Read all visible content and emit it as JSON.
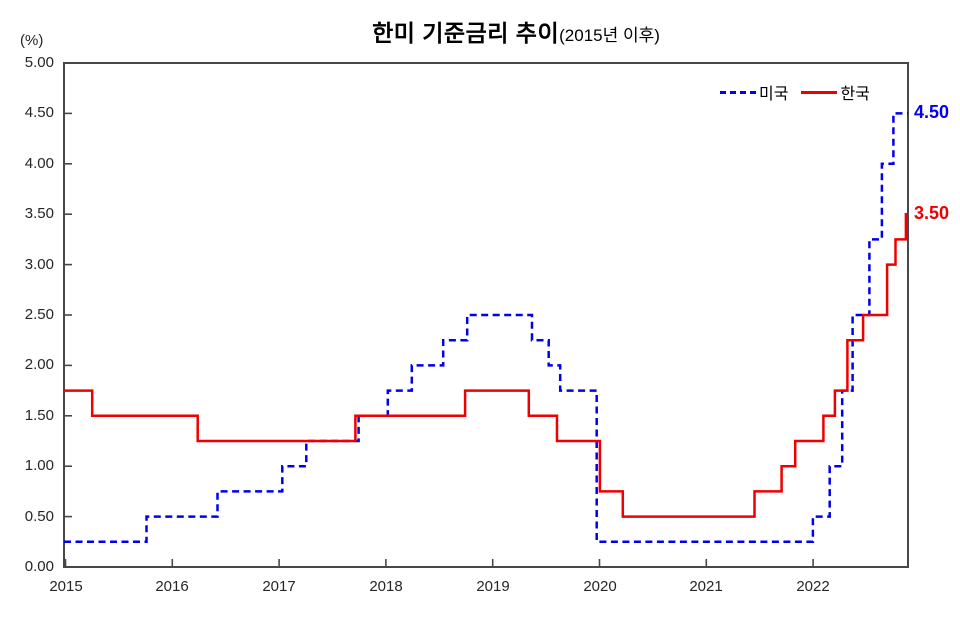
{
  "title": {
    "main": "한미 기준금리 추이",
    "sub": "(2015년 이후)"
  },
  "y_axis": {
    "unit_label": "(%)",
    "min": 0,
    "max": 5,
    "step": 0.5,
    "tick_labels": [
      "5.00",
      "4.50",
      "4.00",
      "3.50",
      "3.00",
      "2.50",
      "2.00",
      "1.50",
      "1.00",
      "0.50",
      "0.00"
    ]
  },
  "x_axis": {
    "years": [
      "2015",
      "2016",
      "2017",
      "2018",
      "2019",
      "2020",
      "2021",
      "2022"
    ]
  },
  "legend": [
    {
      "name": "미국",
      "color": "#0000ee",
      "style": "dashed"
    },
    {
      "name": "한국",
      "color": "#ee0000",
      "style": "solid"
    }
  ],
  "annotations": [
    {
      "text": "4.50",
      "series": "미국",
      "color": "#0000ee",
      "value": 4.5
    },
    {
      "text": "3.50",
      "series": "한국",
      "color": "#ee0000",
      "value": 3.5
    }
  ],
  "chart_data": {
    "type": "line",
    "line_style": "step-after",
    "title": "한미 기준금리 추이(2015년 이후)",
    "xlabel": "",
    "ylabel": "(%)",
    "x_range": [
      2015.0,
      2023.08
    ],
    "ylim": [
      0,
      5
    ],
    "grid": false,
    "legend_position": "top-right-inside",
    "series": [
      {
        "name": "미국",
        "color": "#0000ee",
        "dash": true,
        "points": [
          [
            2015.0,
            0.25
          ],
          [
            2015.79,
            0.5
          ],
          [
            2016.47,
            0.75
          ],
          [
            2017.09,
            1.0
          ],
          [
            2017.32,
            1.25
          ],
          [
            2017.82,
            1.5
          ],
          [
            2018.1,
            1.75
          ],
          [
            2018.33,
            2.0
          ],
          [
            2018.63,
            2.25
          ],
          [
            2018.86,
            2.5
          ],
          [
            2019.48,
            2.25
          ],
          [
            2019.64,
            2.0
          ],
          [
            2019.75,
            1.75
          ],
          [
            2020.1,
            0.25
          ],
          [
            2022.17,
            0.5
          ],
          [
            2022.33,
            1.0
          ],
          [
            2022.45,
            1.75
          ],
          [
            2022.55,
            2.5
          ],
          [
            2022.71,
            3.25
          ],
          [
            2022.83,
            4.0
          ],
          [
            2022.94,
            4.5
          ]
        ],
        "end_value": 4.5
      },
      {
        "name": "한국",
        "color": "#ee0000",
        "dash": false,
        "points": [
          [
            2015.0,
            1.75
          ],
          [
            2015.27,
            1.5
          ],
          [
            2016.28,
            1.25
          ],
          [
            2017.79,
            1.5
          ],
          [
            2018.84,
            1.75
          ],
          [
            2019.45,
            1.5
          ],
          [
            2019.72,
            1.25
          ],
          [
            2020.13,
            0.75
          ],
          [
            2020.35,
            0.5
          ],
          [
            2021.61,
            0.75
          ],
          [
            2021.87,
            1.0
          ],
          [
            2022.0,
            1.25
          ],
          [
            2022.27,
            1.5
          ],
          [
            2022.38,
            1.75
          ],
          [
            2022.5,
            2.25
          ],
          [
            2022.65,
            2.5
          ],
          [
            2022.88,
            3.0
          ],
          [
            2022.96,
            3.25
          ],
          [
            2023.06,
            3.5
          ]
        ],
        "end_value": 3.5
      }
    ]
  }
}
